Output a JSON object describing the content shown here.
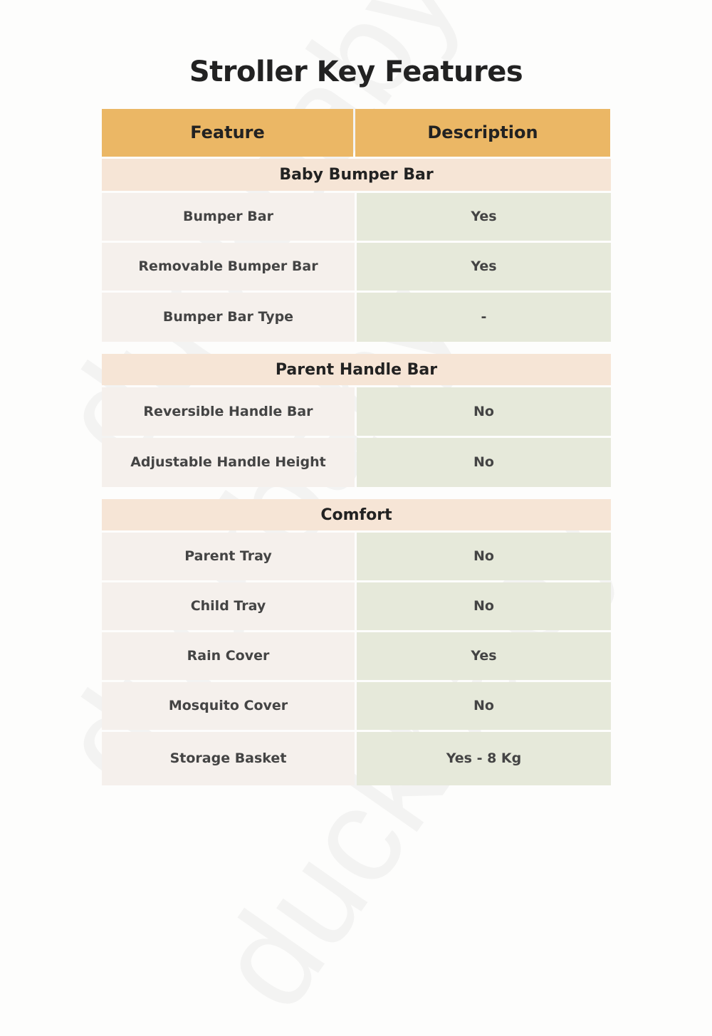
{
  "watermark": "duckbaby",
  "title": "Stroller Key Features",
  "header": {
    "feature": "Feature",
    "description": "Description"
  },
  "sections": [
    {
      "title": "Baby Bumper Bar",
      "rows": [
        {
          "feature": "Bumper Bar",
          "value": "Yes"
        },
        {
          "feature": "Removable Bumper Bar",
          "value": "Yes"
        },
        {
          "feature": "Bumper Bar Type",
          "value": "-"
        }
      ]
    },
    {
      "title": "Parent Handle Bar",
      "rows": [
        {
          "feature": "Reversible Handle Bar",
          "value": "No"
        },
        {
          "feature": "Adjustable Handle Height",
          "value": "No"
        }
      ]
    },
    {
      "title": "Comfort",
      "rows": [
        {
          "feature": "Parent Tray",
          "value": "No"
        },
        {
          "feature": "Child Tray",
          "value": "No"
        },
        {
          "feature": "Rain Cover",
          "value": "Yes"
        },
        {
          "feature": "Mosquito Cover",
          "value": "No"
        },
        {
          "feature": "Storage Basket",
          "value": "Yes - 8 Kg"
        }
      ]
    }
  ],
  "colors": {
    "header": "#ebb765",
    "section": "#f6e5d6",
    "feature_cell": "#f5f0ec",
    "value_cell": "#e6e9da"
  }
}
